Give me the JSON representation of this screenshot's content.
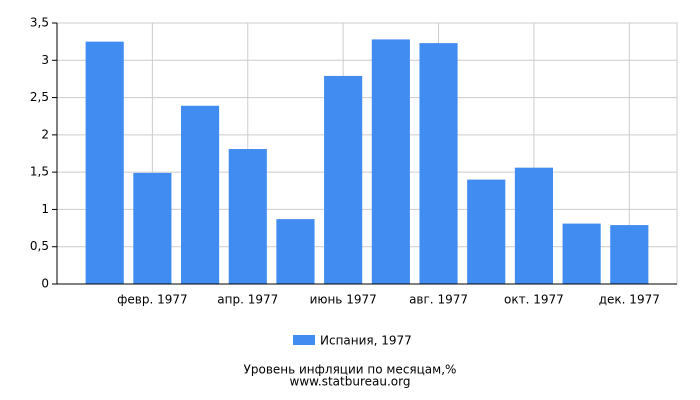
{
  "chart_data": {
    "type": "bar",
    "title": "Уровень инфляции по месяцам,%",
    "subtitle": "www.statbureau.org",
    "categories": [
      null,
      "февр. 1977",
      null,
      "апр. 1977",
      null,
      "июнь 1977",
      null,
      "авг. 1977",
      null,
      "окт. 1977",
      null,
      "дек. 1977"
    ],
    "series": [
      {
        "name": "Испания, 1977",
        "color": "#418cf0",
        "values": [
          3.25,
          1.49,
          2.39,
          1.81,
          0.87,
          2.79,
          3.28,
          3.23,
          1.4,
          1.56,
          0.81,
          0.79
        ]
      }
    ],
    "ylim": [
      0,
      3.5
    ],
    "yticks": [
      0,
      {
        "value": 0.5,
        "label": "0,5"
      },
      1,
      {
        "value": 1.5,
        "label": "1,5"
      },
      2,
      {
        "value": 2.5,
        "label": "2,5"
      },
      3,
      {
        "value": 3.5,
        "label": "3,5"
      }
    ],
    "grid": true
  }
}
